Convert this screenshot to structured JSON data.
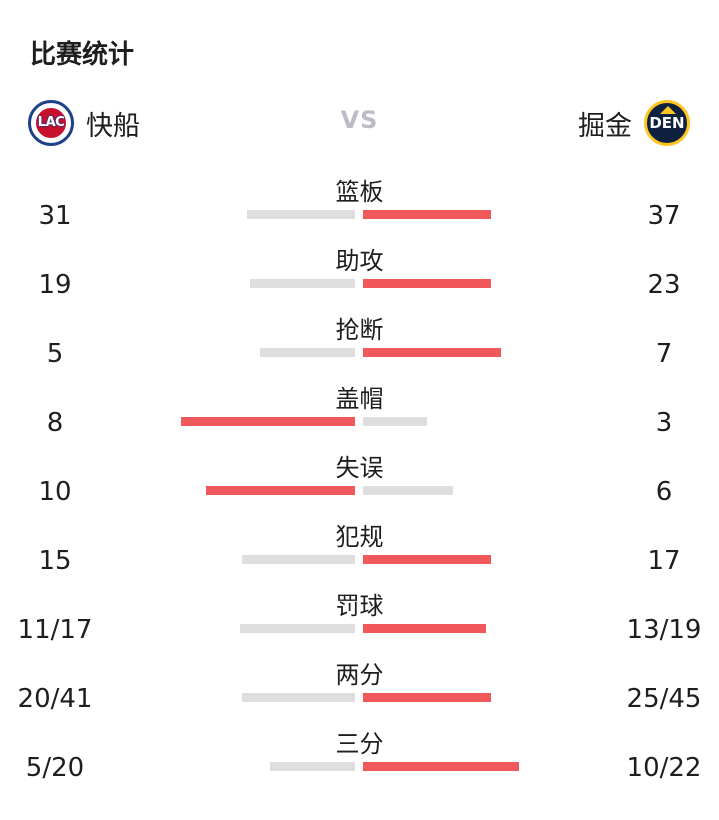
{
  "header": {
    "title": "比赛统计"
  },
  "teams": {
    "left": {
      "name": "快船",
      "logo_text": "LAC"
    },
    "vs": "VS",
    "right": {
      "name": "掘金",
      "logo_text": "DEN"
    }
  },
  "colors": {
    "leader_bar": "#f0585b",
    "other_bar": "#dedede",
    "vs_text": "#bcbcc6"
  },
  "stats": [
    {
      "label": "篮板",
      "left": "31",
      "right": "37",
      "left_bar": 0.42,
      "right_bar": 0.5,
      "leader": "right"
    },
    {
      "label": "助攻",
      "left": "19",
      "right": "23",
      "left_bar": 0.41,
      "right_bar": 0.5,
      "leader": "right"
    },
    {
      "label": "抢断",
      "left": "5",
      "right": "7",
      "left_bar": 0.37,
      "right_bar": 0.54,
      "leader": "right"
    },
    {
      "label": "盖帽",
      "left": "8",
      "right": "3",
      "left_bar": 0.68,
      "right_bar": 0.25,
      "leader": "left"
    },
    {
      "label": "失误",
      "left": "10",
      "right": "6",
      "left_bar": 0.58,
      "right_bar": 0.35,
      "leader": "left"
    },
    {
      "label": "犯规",
      "left": "15",
      "right": "17",
      "left_bar": 0.44,
      "right_bar": 0.5,
      "leader": "right"
    },
    {
      "label": "罚球",
      "left": "11/17",
      "right": "13/19",
      "left_bar": 0.45,
      "right_bar": 0.48,
      "leader": "right"
    },
    {
      "label": "两分",
      "left": "20/41",
      "right": "25/45",
      "left_bar": 0.44,
      "right_bar": 0.5,
      "leader": "right"
    },
    {
      "label": "三分",
      "left": "5/20",
      "right": "10/22",
      "left_bar": 0.33,
      "right_bar": 0.61,
      "leader": "right"
    }
  ]
}
